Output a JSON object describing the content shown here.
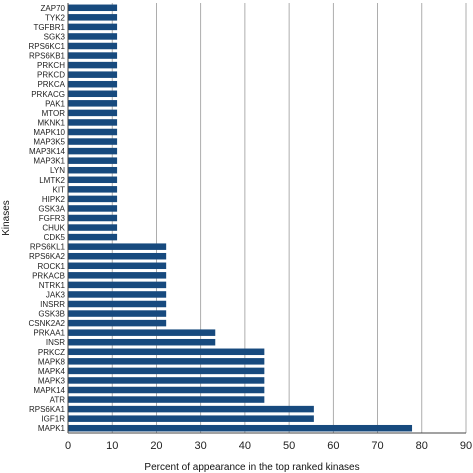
{
  "chart_data": {
    "type": "bar",
    "orientation": "horizontal",
    "title": "",
    "xlabel": "Percent of appearance in the top ranked kinases",
    "ylabel": "Kinases",
    "xlim": [
      0,
      90
    ],
    "xticks": [
      0,
      10,
      20,
      30,
      40,
      50,
      60,
      70,
      80,
      90
    ],
    "grid": "vertical",
    "bar_color": "#174a7e",
    "categories": [
      "MAPK1",
      "IGF1R",
      "RPS6KA1",
      "ATR",
      "MAPK14",
      "MAPK3",
      "MAPK4",
      "MAPK8",
      "PRKCZ",
      "INSR",
      "PRKAA1",
      "CSNK2A2",
      "GSK3B",
      "INSRR",
      "JAK3",
      "NTRK1",
      "PRKACB",
      "ROCK1",
      "RPS6KA2",
      "RPS6KL1",
      "CDK5",
      "CHUK",
      "FGFR3",
      "GSK3A",
      "HIPK2",
      "KIT",
      "LMTK2",
      "LYN",
      "MAP3K1",
      "MAP3K14",
      "MAP3K5",
      "MAPK10",
      "MKNK1",
      "MTOR",
      "PAK1",
      "PRKACG",
      "PRKCA",
      "PRKCD",
      "PRKCH",
      "RPS6KB1",
      "RPS6KC1",
      "SGK3",
      "TGFBR1",
      "TYK2",
      "ZAP70"
    ],
    "values": [
      77.8,
      55.6,
      55.6,
      44.4,
      44.4,
      44.4,
      44.4,
      44.4,
      44.4,
      33.3,
      33.3,
      22.2,
      22.2,
      22.2,
      22.2,
      22.2,
      22.2,
      22.2,
      22.2,
      22.2,
      11.1,
      11.1,
      11.1,
      11.1,
      11.1,
      11.1,
      11.1,
      11.1,
      11.1,
      11.1,
      11.1,
      11.1,
      11.1,
      11.1,
      11.1,
      11.1,
      11.1,
      11.1,
      11.1,
      11.1,
      11.1,
      11.1,
      11.1,
      11.1,
      11.1
    ]
  }
}
